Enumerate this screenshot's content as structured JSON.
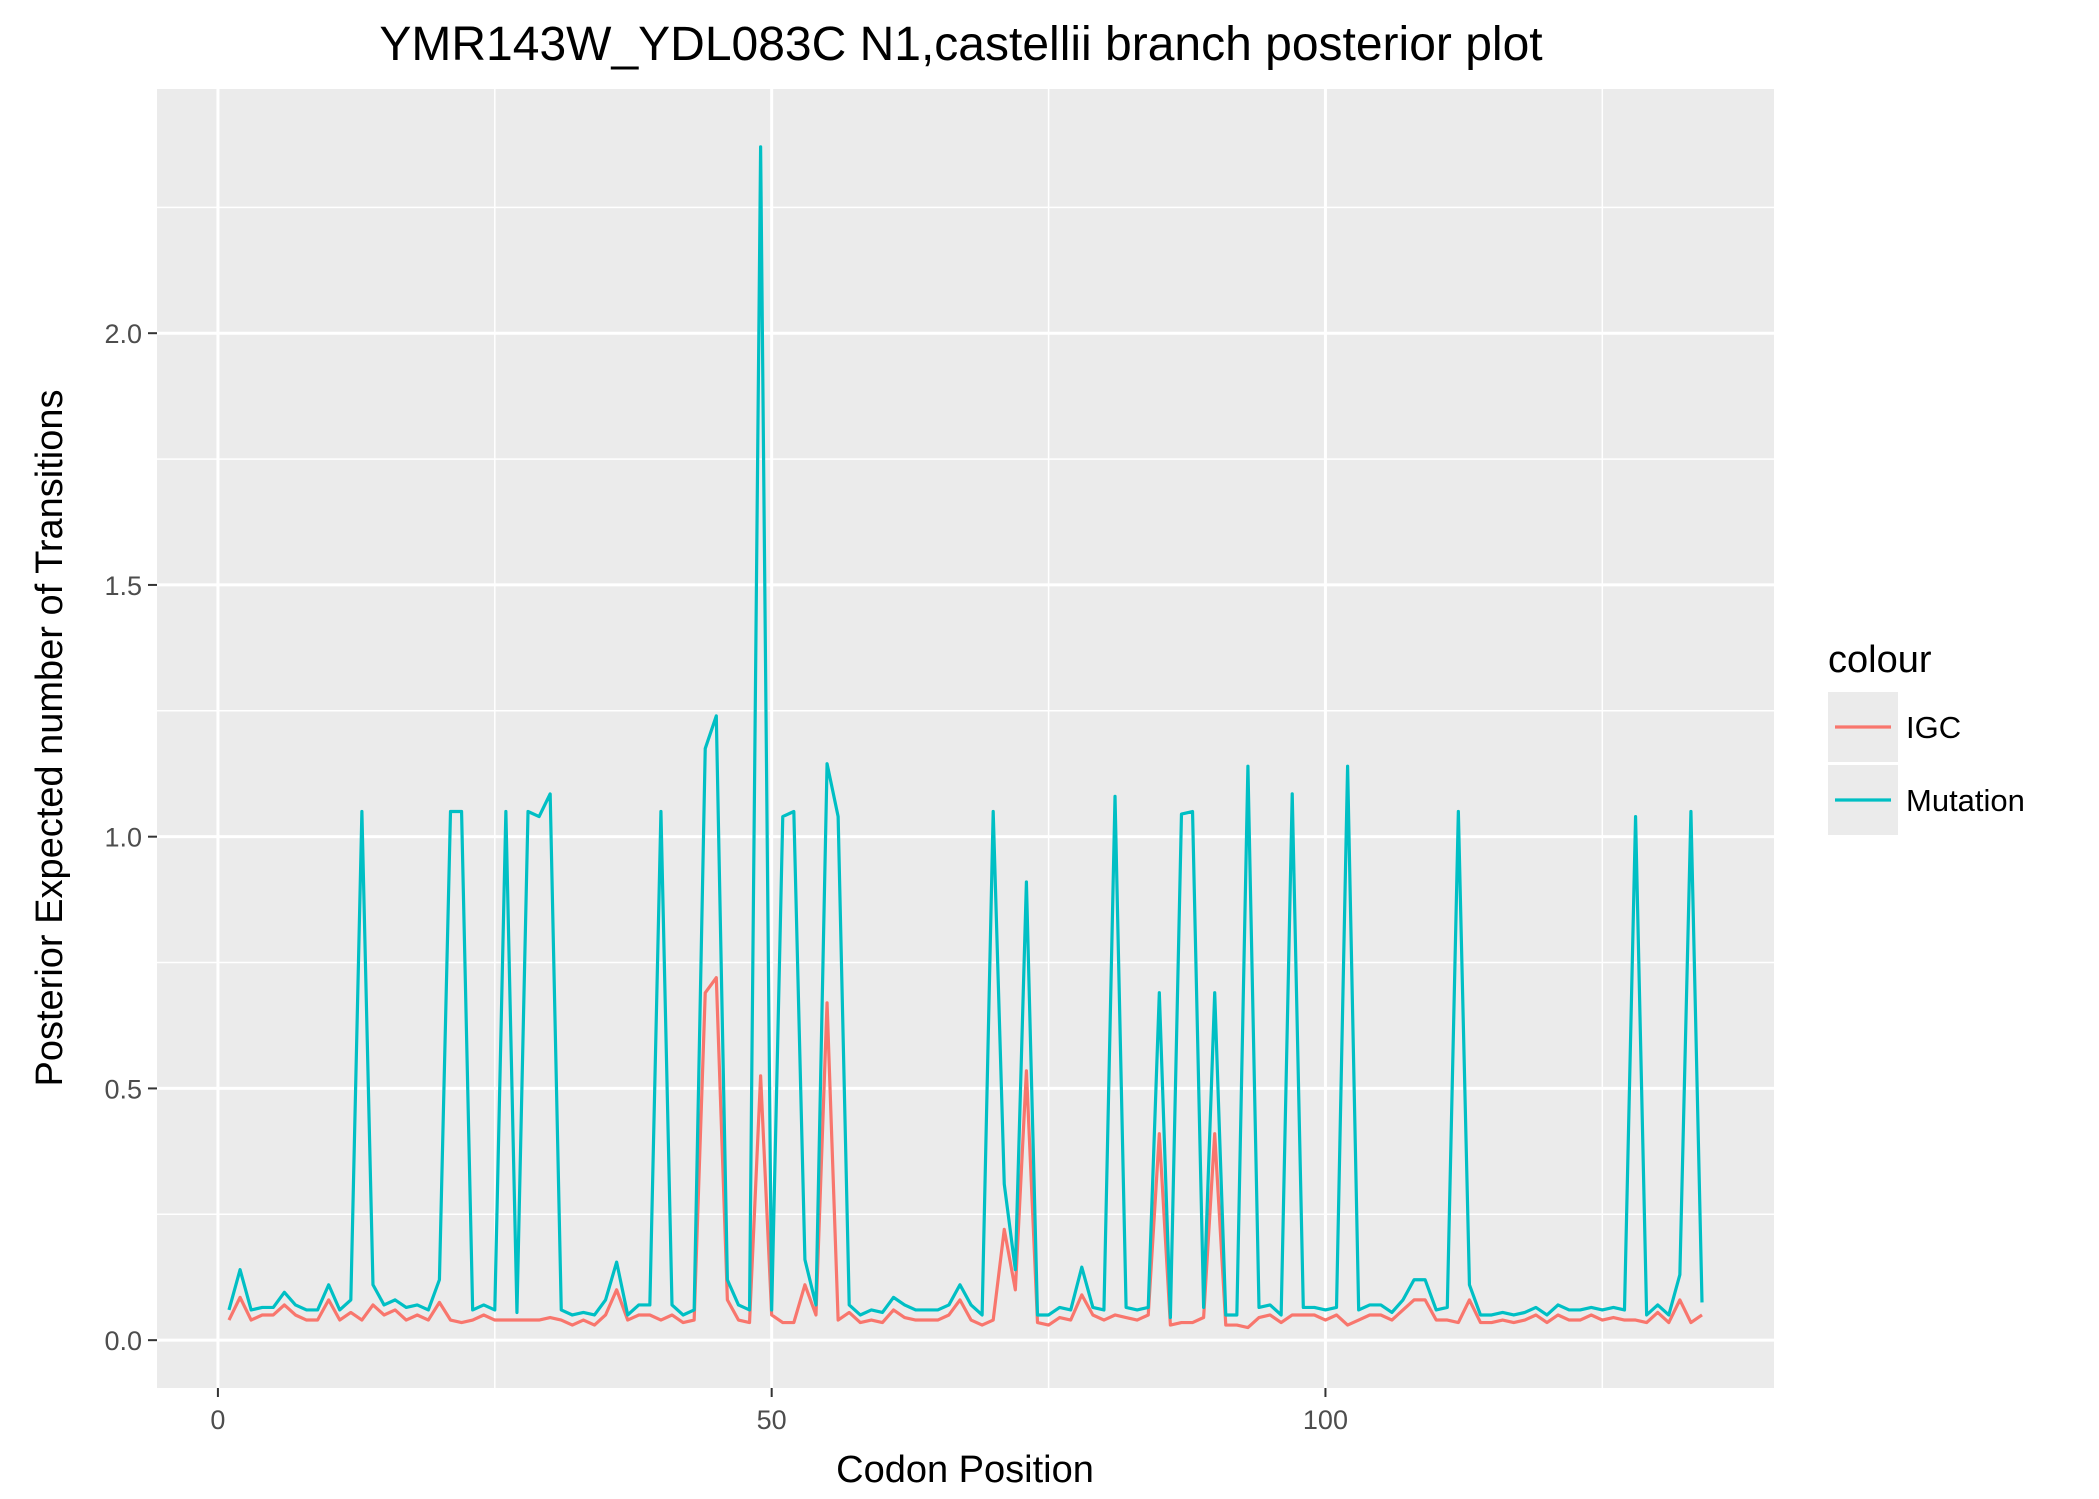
{
  "chart_data": {
    "type": "line",
    "title": "YMR143W_YDL083C N1,castellii branch posterior plot",
    "xlabel": "Codon Position",
    "ylabel": "Posterior Expected number of Transitions",
    "xlim": [
      -5.5,
      140.5
    ],
    "ylim": [
      -0.095,
      2.485
    ],
    "x_ticks": [
      0,
      50,
      100
    ],
    "x_tick_labels": [
      "0",
      "50",
      "100"
    ],
    "y_ticks": [
      0.0,
      0.5,
      1.0,
      1.5,
      2.0
    ],
    "y_tick_labels": [
      "0.0",
      "0.5",
      "1.0",
      "1.5",
      "2.0"
    ],
    "grid": true,
    "legend": {
      "title": "colour",
      "position": "right"
    },
    "x": [
      1,
      2,
      3,
      4,
      5,
      6,
      7,
      8,
      9,
      10,
      11,
      12,
      13,
      14,
      15,
      16,
      17,
      18,
      19,
      20,
      21,
      22,
      23,
      24,
      25,
      26,
      27,
      28,
      29,
      30,
      31,
      32,
      33,
      34,
      35,
      36,
      37,
      38,
      39,
      40,
      41,
      42,
      43,
      44,
      45,
      46,
      47,
      48,
      49,
      50,
      51,
      52,
      53,
      54,
      55,
      56,
      57,
      58,
      59,
      60,
      61,
      62,
      63,
      64,
      65,
      66,
      67,
      68,
      69,
      70,
      71,
      72,
      73,
      74,
      75,
      76,
      77,
      78,
      79,
      80,
      81,
      82,
      83,
      84,
      85,
      86,
      87,
      88,
      89,
      90,
      91,
      92,
      93,
      94,
      95,
      96,
      97,
      98,
      99,
      100,
      101,
      102,
      103,
      104,
      105,
      106,
      107,
      108,
      109,
      110,
      111,
      112,
      113,
      114,
      115,
      116,
      117,
      118,
      119,
      120,
      121,
      122,
      123,
      124,
      125,
      126,
      127,
      128,
      129,
      130,
      131,
      132,
      133,
      134
    ],
    "series": [
      {
        "name": "IGC",
        "color": "#F8766D",
        "values": [
          0.04,
          0.085,
          0.04,
          0.05,
          0.05,
          0.07,
          0.05,
          0.04,
          0.04,
          0.08,
          0.04,
          0.055,
          0.04,
          0.07,
          0.05,
          0.06,
          0.04,
          0.05,
          0.04,
          0.075,
          0.04,
          0.035,
          0.04,
          0.05,
          0.04,
          0.04,
          0.04,
          0.04,
          0.04,
          0.045,
          0.04,
          0.03,
          0.04,
          0.03,
          0.05,
          0.1,
          0.04,
          0.05,
          0.05,
          0.04,
          0.05,
          0.035,
          0.04,
          0.69,
          0.72,
          0.08,
          0.04,
          0.035,
          0.525,
          0.05,
          0.035,
          0.035,
          0.11,
          0.05,
          0.67,
          0.04,
          0.055,
          0.035,
          0.04,
          0.035,
          0.06,
          0.045,
          0.04,
          0.04,
          0.04,
          0.05,
          0.08,
          0.04,
          0.03,
          0.04,
          0.22,
          0.1,
          0.535,
          0.035,
          0.03,
          0.045,
          0.04,
          0.09,
          0.05,
          0.04,
          0.05,
          0.045,
          0.04,
          0.05,
          0.41,
          0.03,
          0.035,
          0.035,
          0.045,
          0.41,
          0.03,
          0.03,
          0.025,
          0.045,
          0.05,
          0.035,
          0.05,
          0.05,
          0.05,
          0.04,
          0.05,
          0.03,
          0.04,
          0.05,
          0.05,
          0.04,
          0.06,
          0.08,
          0.08,
          0.04,
          0.04,
          0.035,
          0.08,
          0.035,
          0.035,
          0.04,
          0.035,
          0.04,
          0.05,
          0.035,
          0.05,
          0.04,
          0.04,
          0.05,
          0.04,
          0.045,
          0.04,
          0.04,
          0.035,
          0.055,
          0.035,
          0.08,
          0.035,
          0.05
        ]
      },
      {
        "name": "Mutation",
        "color": "#00BFC4",
        "values": [
          0.06,
          0.14,
          0.06,
          0.065,
          0.065,
          0.095,
          0.07,
          0.06,
          0.06,
          0.11,
          0.06,
          0.08,
          1.05,
          0.11,
          0.07,
          0.08,
          0.065,
          0.07,
          0.06,
          0.12,
          1.05,
          1.05,
          0.06,
          0.07,
          0.06,
          1.05,
          0.055,
          1.05,
          1.04,
          1.085,
          0.06,
          0.05,
          0.055,
          0.05,
          0.08,
          0.155,
          0.05,
          0.07,
          0.07,
          1.05,
          0.07,
          0.05,
          0.06,
          1.175,
          1.24,
          0.12,
          0.07,
          0.06,
          2.37,
          0.06,
          1.04,
          1.05,
          0.16,
          0.07,
          1.145,
          1.04,
          0.07,
          0.05,
          0.06,
          0.055,
          0.085,
          0.07,
          0.06,
          0.06,
          0.06,
          0.07,
          0.11,
          0.07,
          0.05,
          1.05,
          0.31,
          0.14,
          0.91,
          0.05,
          0.05,
          0.065,
          0.06,
          0.145,
          0.065,
          0.06,
          1.08,
          0.065,
          0.06,
          0.065,
          0.69,
          0.045,
          1.045,
          1.05,
          0.065,
          0.69,
          0.05,
          0.05,
          1.14,
          0.065,
          0.07,
          0.05,
          1.085,
          0.065,
          0.065,
          0.06,
          0.065,
          1.14,
          0.06,
          0.07,
          0.07,
          0.055,
          0.08,
          0.12,
          0.12,
          0.06,
          0.065,
          1.05,
          0.11,
          0.05,
          0.05,
          0.055,
          0.05,
          0.055,
          0.065,
          0.05,
          0.07,
          0.06,
          0.06,
          0.065,
          0.06,
          0.065,
          0.06,
          1.04,
          0.05,
          0.07,
          0.05,
          0.13,
          1.05,
          0.075
        ]
      }
    ]
  }
}
